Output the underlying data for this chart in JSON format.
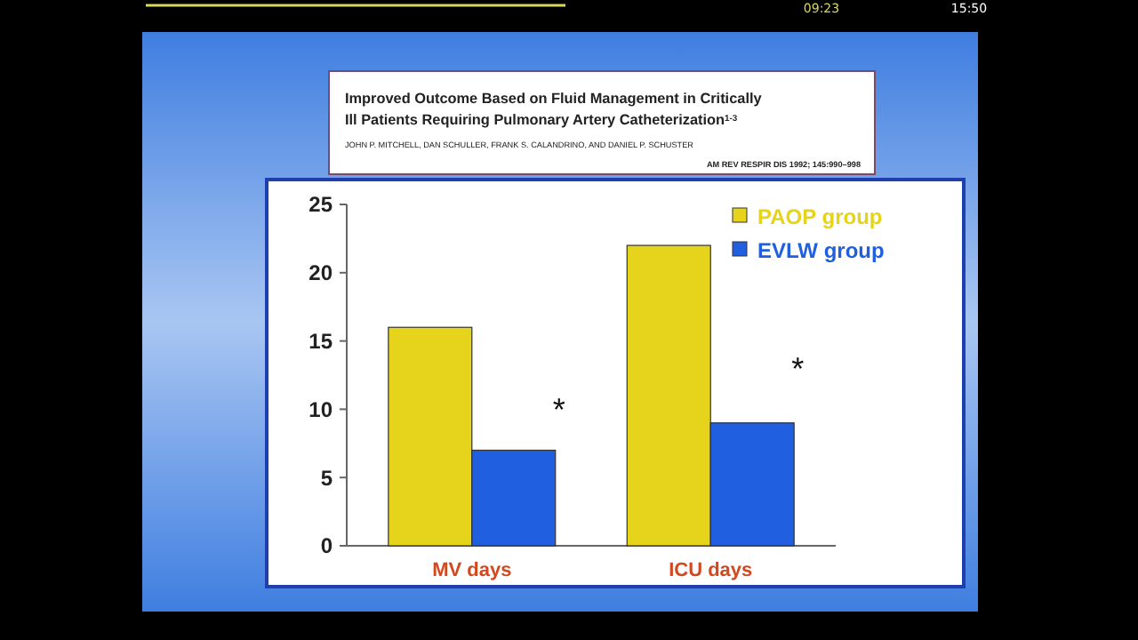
{
  "chart_data": {
    "type": "bar",
    "title": "Improved Outcome Based on Fluid Management in Critically Ill Patients Requiring Pulmonary Artery Catheterization$^{1-3}$",
    "subtitle": "JOHN P. MITCHELL, DAN SCHULLER, FRANK S. CALANDRINO, AND DANIEL P. SCHUSTER",
    "categories": [
      "MV days",
      "ICU days"
    ],
    "series": [
      {
        "name": "PAOP group",
        "color": "#e6d31c",
        "values": [
          16,
          22
        ]
      },
      {
        "name": "EVLW group",
        "color": "#1f5fe0",
        "values": [
          7,
          9
        ]
      }
    ],
    "ylim": [
      0,
      25
    ],
    "yticks": [
      0,
      5,
      10,
      15,
      20,
      25
    ],
    "grid": false,
    "legend": "top right",
    "annotations": [
      "AM REV RESPIR DIS 1992; 145:990–998",
      "09:23",
      "15:50",
      {
        "text": "*",
        "x": "MV days",
        "y": 10
      },
      {
        "text": "*",
        "x": "ICU days",
        "y": 13
      }
    ]
  }
}
